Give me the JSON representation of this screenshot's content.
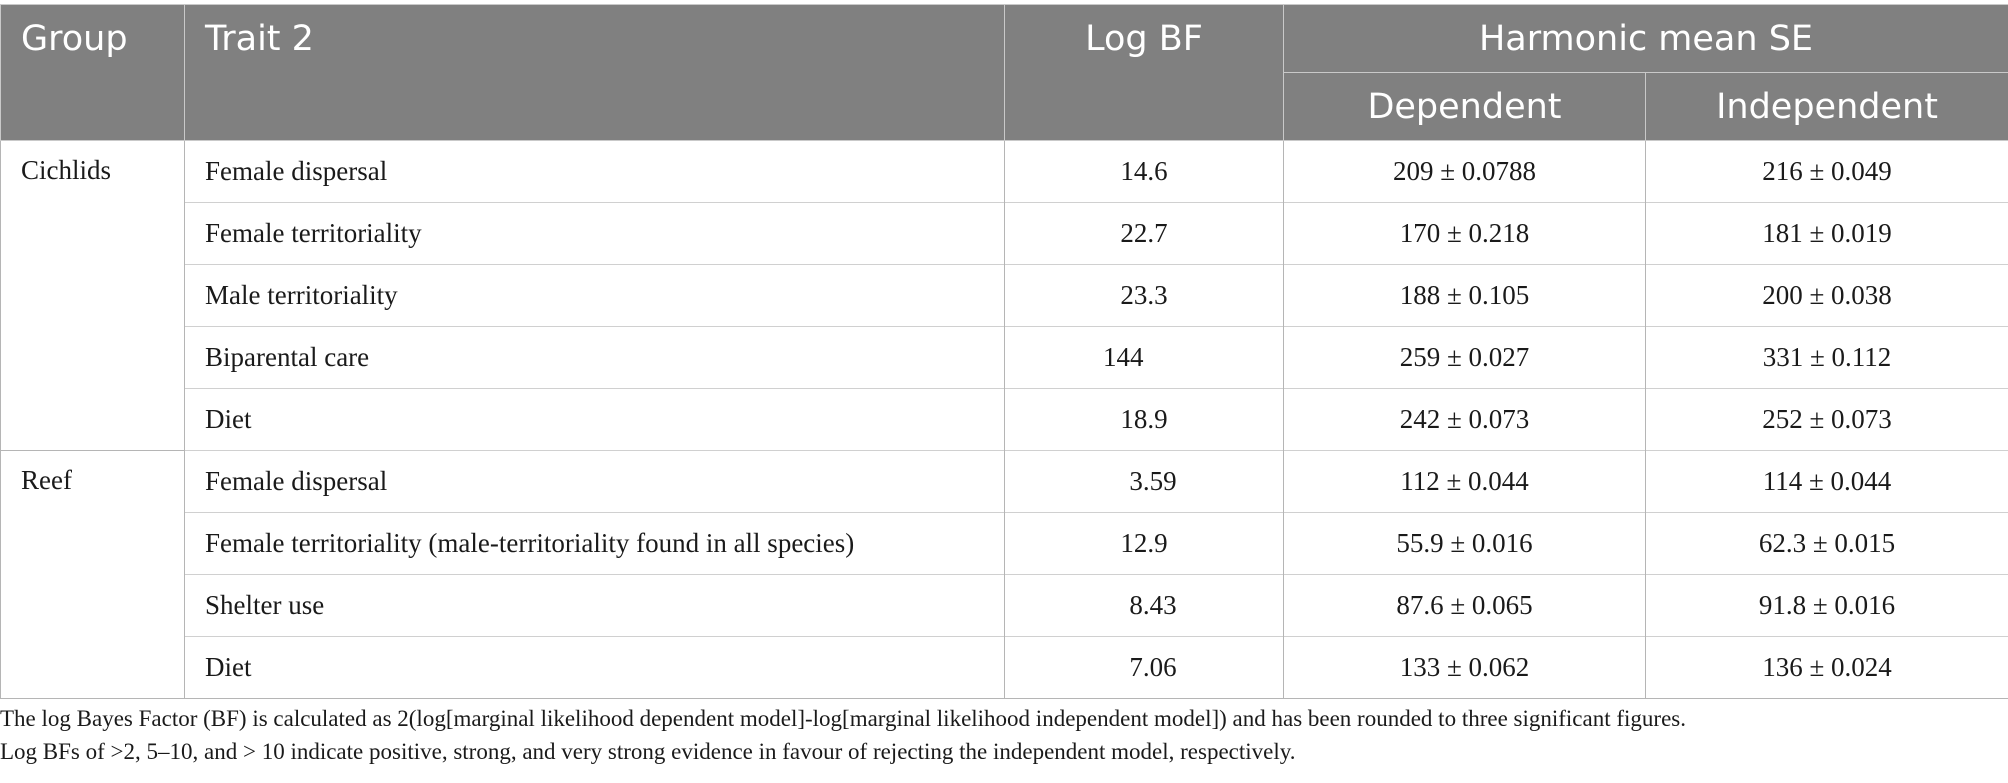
{
  "table": {
    "headers": {
      "group": "Group",
      "trait": "Trait 2",
      "logbf": "Log BF",
      "harmonic": "Harmonic mean SE",
      "dependent": "Dependent",
      "independent": "Independent"
    },
    "groups": [
      {
        "name": "Cichlids",
        "rows": [
          {
            "trait": "Female dispersal",
            "logbf": "14.6",
            "dependent": "209 ± 0.0788",
            "independent": "216 ± 0.049"
          },
          {
            "trait": "Female territoriality",
            "logbf": "22.7",
            "dependent": "170 ± 0.218",
            "independent": "181 ± 0.019"
          },
          {
            "trait": "Male territoriality",
            "logbf": "23.3",
            "dependent": "188 ± 0.105",
            "independent": "200 ± 0.038"
          },
          {
            "trait": "Biparental care",
            "logbf": "144",
            "dependent": "259 ± 0.027",
            "independent": "331 ± 0.112"
          },
          {
            "trait": "Diet",
            "logbf": "18.9",
            "dependent": "242 ± 0.073",
            "independent": "252 ± 0.073"
          }
        ]
      },
      {
        "name": "Reef",
        "rows": [
          {
            "trait": "Female dispersal",
            "logbf": "3.59",
            "dependent": "112 ± 0.044",
            "independent": "114 ± 0.044"
          },
          {
            "trait": "Female territoriality (male-territoriality found in all species)",
            "logbf": "12.9",
            "dependent": "55.9 ± 0.016",
            "independent": "62.3 ± 0.015"
          },
          {
            "trait": "Shelter use",
            "logbf": "8.43",
            "dependent": "87.6 ± 0.065",
            "independent": "91.8 ± 0.016"
          },
          {
            "trait": "Diet",
            "logbf": "7.06",
            "dependent": "133 ± 0.062",
            "independent": "136 ± 0.024"
          }
        ]
      }
    ]
  },
  "footnote": {
    "line1": "The log Bayes Factor (BF) is calculated as 2(log[marginal likelihood dependent model]-log[marginal likelihood independent model]) and has been rounded to three significant figures.",
    "line2": "Log BFs of >2, 5–10, and > 10 indicate positive, strong, and very strong evidence in favour of rejecting the independent model, respectively."
  },
  "colors": {
    "header_bg": "#808080",
    "header_text": "#ffffff",
    "body_text": "#1a1a1a"
  }
}
